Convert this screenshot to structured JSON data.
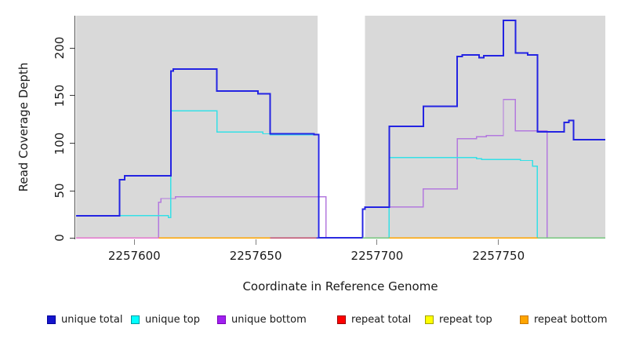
{
  "chart_data": {
    "type": "line",
    "subtype": "step-after",
    "title": "",
    "xlabel": "Coordinate in Reference Genome",
    "ylabel": "Read Coverage Depth",
    "xlim": [
      2257576,
      2257794
    ],
    "ylim": [
      0,
      234
    ],
    "x_ticks": [
      2257600,
      2257650,
      2257700,
      2257750
    ],
    "y_ticks": [
      0,
      50,
      100,
      150,
      200
    ],
    "grid": false,
    "plot_bg": "#d9d9d9",
    "gap_region": {
      "x_start": 2257675.5,
      "x_end": 2257695,
      "color": "#ffffff"
    },
    "series": [
      {
        "name": "repeat total",
        "color": "#ff0000",
        "width": 1.4,
        "steps": [
          [
            2257576,
            0
          ],
          [
            2257794,
            0
          ]
        ]
      },
      {
        "name": "repeat top",
        "color": "#ffff00",
        "width": 1.4,
        "steps": [
          [
            2257576,
            0
          ],
          [
            2257794,
            0
          ]
        ]
      },
      {
        "name": "repeat bottom",
        "color": "#ffa500",
        "width": 1.4,
        "steps": [
          [
            2257576,
            0
          ],
          [
            2257794,
            0
          ]
        ]
      },
      {
        "name": "unique bottom",
        "color": "#b379de",
        "width": 1.4,
        "steps": [
          [
            2257576,
            0
          ],
          [
            2257610,
            38
          ],
          [
            2257611,
            42
          ],
          [
            2257617,
            44
          ],
          [
            2257679,
            0
          ],
          [
            2257694,
            31
          ],
          [
            2257695,
            33
          ],
          [
            2257719,
            52
          ],
          [
            2257733,
            105
          ],
          [
            2257741,
            107
          ],
          [
            2257745,
            108
          ],
          [
            2257752,
            146
          ],
          [
            2257757,
            113
          ],
          [
            2257770,
            0
          ],
          [
            2257794,
            0
          ]
        ]
      },
      {
        "name": "unique top",
        "color": "#35e0e6",
        "width": 1.4,
        "steps": [
          [
            2257576,
            24
          ],
          [
            2257614,
            22
          ],
          [
            2257615,
            134
          ],
          [
            2257634,
            112
          ],
          [
            2257653,
            110
          ],
          [
            2257656,
            109
          ],
          [
            2257676,
            0
          ],
          [
            2257705,
            85
          ],
          [
            2257741,
            84
          ],
          [
            2257743,
            83
          ],
          [
            2257759,
            82
          ],
          [
            2257764,
            76
          ],
          [
            2257766,
            0
          ],
          [
            2257794,
            0
          ]
        ]
      },
      {
        "name": "unique total",
        "color": "#2424e2",
        "width": 2,
        "steps": [
          [
            2257576,
            24
          ],
          [
            2257594,
            62
          ],
          [
            2257596,
            66
          ],
          [
            2257615,
            176
          ],
          [
            2257616,
            178
          ],
          [
            2257634,
            155
          ],
          [
            2257651,
            152
          ],
          [
            2257656,
            110
          ],
          [
            2257674,
            109
          ],
          [
            2257676,
            0
          ],
          [
            2257694,
            31
          ],
          [
            2257695,
            33
          ],
          [
            2257705,
            118
          ],
          [
            2257719,
            139
          ],
          [
            2257733,
            191
          ],
          [
            2257735,
            193
          ],
          [
            2257742,
            190
          ],
          [
            2257744,
            192
          ],
          [
            2257752,
            229
          ],
          [
            2257757,
            195
          ],
          [
            2257762,
            193
          ],
          [
            2257766,
            112
          ],
          [
            2257777,
            122
          ],
          [
            2257779,
            124
          ],
          [
            2257781,
            104
          ],
          [
            2257794,
            104
          ]
        ]
      }
    ],
    "baseline_segments": [
      {
        "x_start": 2257576,
        "x_end": 2257610,
        "color": "#e476cd"
      },
      {
        "x_start": 2257610,
        "x_end": 2257656,
        "color": "#ffa500"
      },
      {
        "x_start": 2257656,
        "x_end": 2257675,
        "color": "#c04f6e"
      },
      {
        "x_start": 2257675,
        "x_end": 2257694,
        "color": "#2d2de0"
      },
      {
        "x_start": 2257694,
        "x_end": 2257705,
        "color": "#76c77e"
      },
      {
        "x_start": 2257705,
        "x_end": 2257766,
        "color": "#ffa500"
      },
      {
        "x_start": 2257766,
        "x_end": 2257794,
        "color": "#76c77e"
      }
    ],
    "legend": [
      {
        "label": "unique total",
        "fill": "#1414cc",
        "border": "#000099"
      },
      {
        "label": "unique top",
        "fill": "#00ffff",
        "border": "#00999f"
      },
      {
        "label": "unique bottom",
        "fill": "#a020f0",
        "border": "#7a00b8"
      },
      {
        "label": "repeat total",
        "fill": "#ff0000",
        "border": "#990000"
      },
      {
        "label": "repeat top",
        "fill": "#ffff00",
        "border": "#a0a000"
      },
      {
        "label": "repeat bottom",
        "fill": "#ffa500",
        "border": "#c87800"
      }
    ],
    "legend_position": "bottom"
  }
}
